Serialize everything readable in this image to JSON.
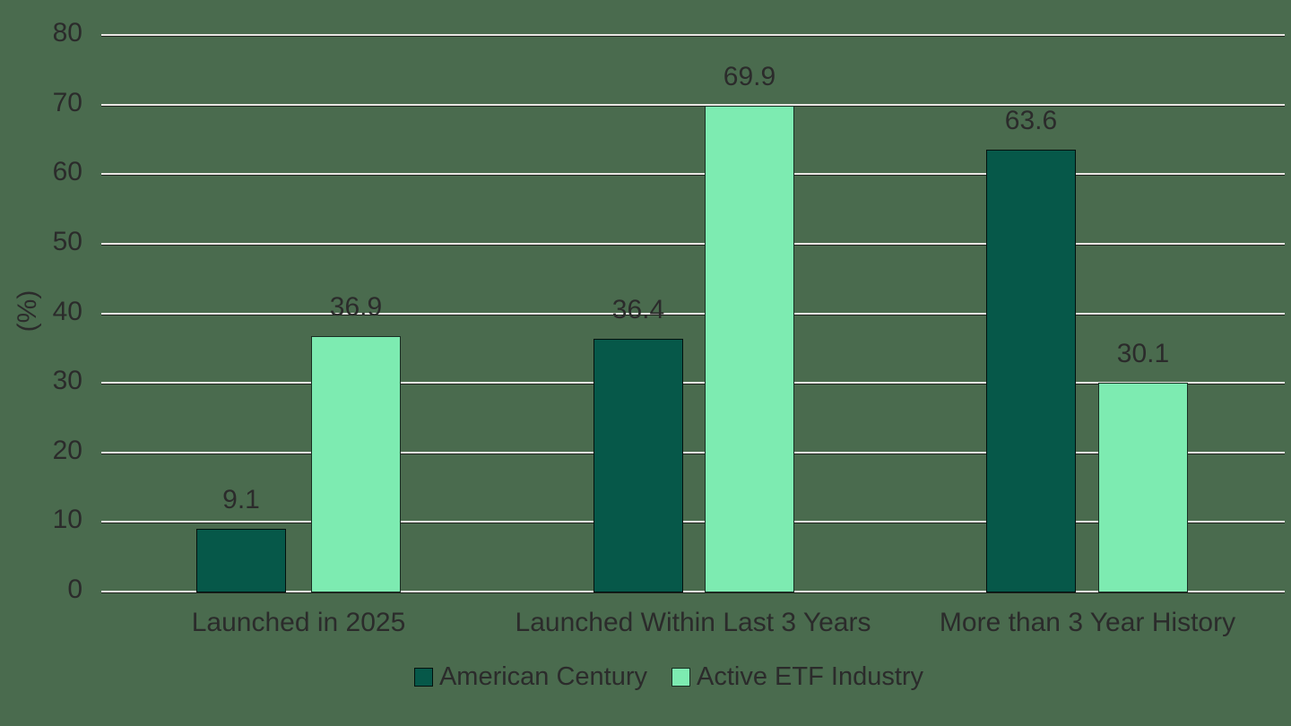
{
  "chart_data": {
    "type": "bar",
    "title": "",
    "categories": [
      "Launched in 2025",
      "Launched Within Last 3 Years",
      "More than 3 Year History"
    ],
    "series": [
      {
        "name": "American Century",
        "color": "#065849",
        "values": [
          9.1,
          36.4,
          63.6
        ]
      },
      {
        "name": "Active ETF Industry",
        "color": "#7DEBB1",
        "values": [
          36.9,
          69.9,
          30.1
        ]
      }
    ],
    "value_labels": [
      "9.1",
      "36.4",
      "63.6",
      "36.9",
      "69.9",
      "30.1"
    ],
    "ylabel": "(%)",
    "ylim": [
      0,
      80
    ],
    "yticks": [
      0,
      10,
      20,
      30,
      40,
      50,
      60,
      70,
      80
    ],
    "grid": true,
    "legend_position": "bottom"
  },
  "colors": {
    "background": "#4A6B4E",
    "gridline": "#E9E7E3",
    "gridline_shadow": "#20241F",
    "text": "#2B2B2B",
    "bar_outline": "rgba(0,0,0,0.8)"
  }
}
